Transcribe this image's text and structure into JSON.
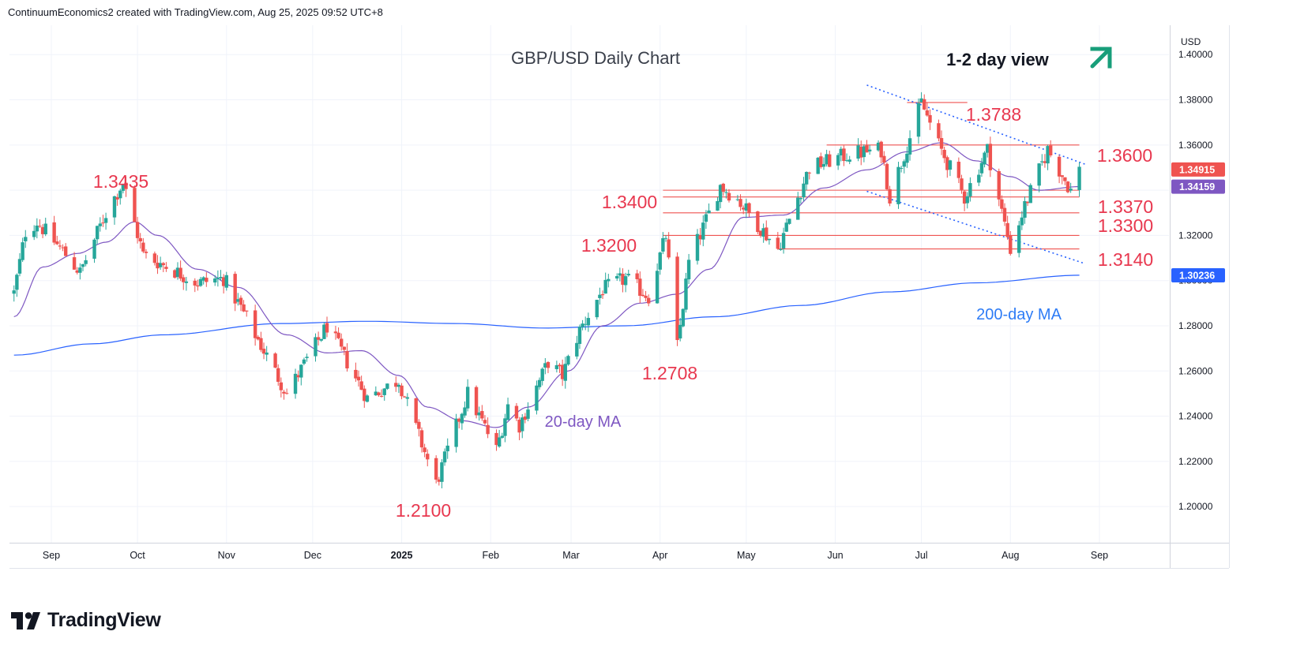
{
  "header": {
    "attribution": "ContinuumEconomics2 created with TradingView.com, Aug 25, 2025 09:52 UTC+8"
  },
  "branding": {
    "name": "TradingView"
  },
  "colors": {
    "up": "#26a69a",
    "down": "#ef5350",
    "ma20": "#7e57c2",
    "ma200": "#2962ff",
    "level": "#ef5350",
    "label": "#e8384f",
    "arrow": "#189e7a"
  },
  "chart_data": {
    "type": "candlestick",
    "title": "GBP/USD Daily Chart",
    "view": "1-2 day view",
    "currency": "USD",
    "ylim": [
      1.184,
      1.413
    ],
    "y_ticks": [
      "1.40000",
      "1.38000",
      "1.36000",
      "1.34000",
      "1.32000",
      "1.30000",
      "1.28000",
      "1.26000",
      "1.24000",
      "1.22000",
      "1.20000"
    ],
    "x_ticks": [
      "Sep",
      "Oct",
      "Nov",
      "Dec",
      "2025",
      "Feb",
      "Mar",
      "Apr",
      "May",
      "Jun",
      "Jul",
      "Aug",
      "Sep"
    ],
    "price_badges": [
      {
        "label": "1.34915",
        "value": 1.34915,
        "color": "#ef5350"
      },
      {
        "label": "1.34159",
        "value": 1.34159,
        "color": "#7e57c2"
      },
      {
        "label": "1.30236",
        "value": 1.30236,
        "color": "#2962ff"
      }
    ],
    "levels": [
      {
        "value": 1.3788,
        "label": "1.3788",
        "from": "2025-06-26",
        "to": "2025-07-17"
      },
      {
        "value": 1.36,
        "label": "1.3600",
        "from": "2025-05-29",
        "to": "2025-08-25"
      },
      {
        "value": 1.34,
        "label": "1.3400",
        "from": "2025-04-02",
        "to": "2025-08-25"
      },
      {
        "value": 1.337,
        "label": "1.3370",
        "from": "2025-04-02",
        "to": "2025-08-25"
      },
      {
        "value": 1.33,
        "label": "1.3300",
        "from": "2025-04-02",
        "to": "2025-08-25"
      },
      {
        "value": 1.32,
        "label": "1.3200",
        "from": "2025-04-02",
        "to": "2025-08-25"
      },
      {
        "value": 1.314,
        "label": "1.3140",
        "from": "2025-05-12",
        "to": "2025-08-25"
      }
    ],
    "annotations": [
      {
        "text": "1.3435",
        "date": "2024-09-26",
        "value": 1.3435
      },
      {
        "text": "1.2100",
        "date": "2025-01-13",
        "value": 1.21
      },
      {
        "text": "1.2708",
        "date": "2025-04-07",
        "value": 1.2708
      },
      {
        "text": "20-day MA",
        "series": "20-day MA"
      },
      {
        "text": "200-day MA",
        "series": "200-day MA"
      }
    ],
    "trendlines": [
      {
        "points": [
          [
            "2025-06-12",
            1.3865
          ],
          [
            "2025-08-27",
            1.3515
          ]
        ]
      },
      {
        "points": [
          [
            "2025-06-12",
            1.3395
          ],
          [
            "2025-08-27",
            1.3075
          ]
        ]
      }
    ],
    "anchors": [
      [
        "2024-08-19",
        1.2945
      ],
      [
        "2024-08-23",
        1.3215
      ],
      [
        "2024-08-27",
        1.326
      ],
      [
        "2024-09-06",
        1.3115
      ],
      [
        "2024-09-11",
        1.3035
      ],
      [
        "2024-09-20",
        1.33
      ],
      [
        "2024-09-26",
        1.3435
      ],
      [
        "2024-10-03",
        1.3115
      ],
      [
        "2024-10-10",
        1.307
      ],
      [
        "2024-10-22",
        1.299
      ],
      [
        "2024-10-31",
        1.301
      ],
      [
        "2024-11-06",
        1.288
      ],
      [
        "2024-11-22",
        1.25
      ],
      [
        "2024-12-06",
        1.28
      ],
      [
        "2024-12-20",
        1.248
      ],
      [
        "2024-12-31",
        1.256
      ],
      [
        "2025-01-13",
        1.21
      ],
      [
        "2025-01-24",
        1.25
      ],
      [
        "2025-02-03",
        1.225
      ],
      [
        "2025-02-07",
        1.245
      ],
      [
        "2025-02-11",
        1.236
      ],
      [
        "2025-02-21",
        1.264
      ],
      [
        "2025-02-26",
        1.258
      ],
      [
        "2025-03-04",
        1.278
      ],
      [
        "2025-03-12",
        1.296
      ],
      [
        "2025-03-20",
        1.301
      ],
      [
        "2025-03-28",
        1.293
      ],
      [
        "2025-04-03",
        1.32
      ],
      [
        "2025-04-07",
        1.2708
      ],
      [
        "2025-04-11",
        1.308
      ],
      [
        "2025-04-22",
        1.342
      ],
      [
        "2025-04-28",
        1.336
      ],
      [
        "2025-05-12",
        1.314
      ],
      [
        "2025-05-23",
        1.35
      ],
      [
        "2025-06-06",
        1.356
      ],
      [
        "2025-06-17",
        1.358
      ],
      [
        "2025-06-20",
        1.337
      ],
      [
        "2025-07-01",
        1.3788
      ],
      [
        "2025-07-07",
        1.36
      ],
      [
        "2025-07-16",
        1.337
      ],
      [
        "2025-07-24",
        1.358
      ],
      [
        "2025-08-01",
        1.314
      ],
      [
        "2025-08-06",
        1.333
      ],
      [
        "2025-08-14",
        1.358
      ],
      [
        "2025-08-22",
        1.34
      ],
      [
        "2025-08-25",
        1.3491
      ]
    ],
    "ma20": [
      [
        "2024-08-19",
        1.284
      ],
      [
        "2024-08-29",
        1.306
      ],
      [
        "2024-09-10",
        1.312
      ],
      [
        "2024-09-20",
        1.317
      ],
      [
        "2024-09-30",
        1.326
      ],
      [
        "2024-10-08",
        1.32
      ],
      [
        "2024-10-22",
        1.305
      ],
      [
        "2024-11-05",
        1.297
      ],
      [
        "2024-11-22",
        1.276
      ],
      [
        "2024-12-06",
        1.268
      ],
      [
        "2024-12-18",
        1.269
      ],
      [
        "2024-12-31",
        1.258
      ],
      [
        "2025-01-10",
        1.244
      ],
      [
        "2025-01-22",
        1.238
      ],
      [
        "2025-02-03",
        1.235
      ],
      [
        "2025-02-14",
        1.244
      ],
      [
        "2025-02-28",
        1.26
      ],
      [
        "2025-03-12",
        1.28
      ],
      [
        "2025-03-25",
        1.29
      ],
      [
        "2025-04-07",
        1.294
      ],
      [
        "2025-04-18",
        1.305
      ],
      [
        "2025-04-30",
        1.328
      ],
      [
        "2025-05-14",
        1.329
      ],
      [
        "2025-05-28",
        1.341
      ],
      [
        "2025-06-12",
        1.349
      ],
      [
        "2025-06-26",
        1.357
      ],
      [
        "2025-07-08",
        1.361
      ],
      [
        "2025-07-20",
        1.353
      ],
      [
        "2025-08-01",
        1.346
      ],
      [
        "2025-08-11",
        1.34
      ],
      [
        "2025-08-25",
        1.34159
      ]
    ],
    "ma200": [
      [
        "2024-08-19",
        1.267
      ],
      [
        "2024-09-15",
        1.272
      ],
      [
        "2024-10-10",
        1.276
      ],
      [
        "2024-11-20",
        1.281
      ],
      [
        "2024-12-20",
        1.282
      ],
      [
        "2025-01-20",
        1.281
      ],
      [
        "2025-02-20",
        1.279
      ],
      [
        "2025-03-20",
        1.28
      ],
      [
        "2025-04-20",
        1.284
      ],
      [
        "2025-05-20",
        1.289
      ],
      [
        "2025-06-20",
        1.295
      ],
      [
        "2025-07-20",
        1.299
      ],
      [
        "2025-08-25",
        1.30236
      ]
    ]
  }
}
